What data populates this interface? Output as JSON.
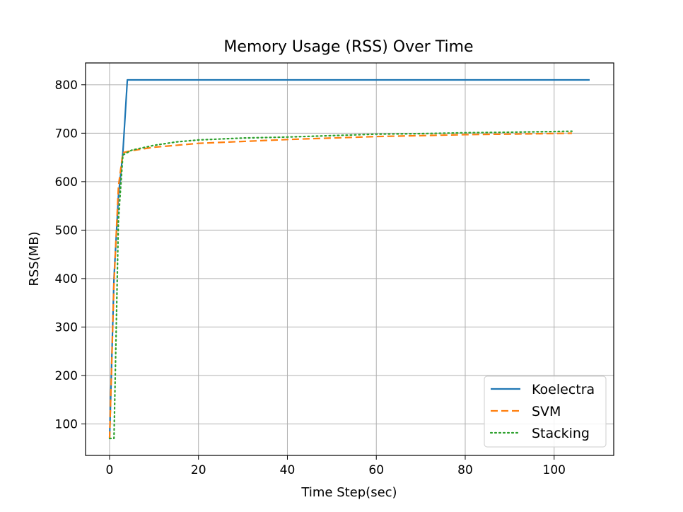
{
  "chart_data": {
    "type": "line",
    "title": "Memory Usage (RSS) Over Time",
    "xlabel": "Time Step(sec)",
    "ylabel": "RSS(MB)",
    "xlim": [
      -5.4,
      113.4
    ],
    "ylim": [
      35,
      845
    ],
    "xticks": [
      0,
      20,
      40,
      60,
      80,
      100
    ],
    "yticks": [
      100,
      200,
      300,
      400,
      500,
      600,
      700,
      800
    ],
    "grid": true,
    "legend_position": "lower-right",
    "series": [
      {
        "name": "Koelectra",
        "color": "#1f77b4",
        "style": "solid",
        "x": [
          0,
          1,
          2,
          3,
          4,
          108
        ],
        "y": [
          70,
          400,
          570,
          660,
          810,
          810
        ]
      },
      {
        "name": "SVM",
        "color": "#ff7f0e",
        "style": "dashed",
        "x": [
          0,
          1,
          2,
          3,
          5,
          10,
          20,
          30,
          40,
          50,
          60,
          70,
          80,
          90,
          104
        ],
        "y": [
          70,
          390,
          590,
          660,
          664,
          671,
          679,
          683,
          687,
          690,
          693,
          695,
          697,
          698,
          700
        ]
      },
      {
        "name": "Stacking",
        "color": "#2ca02c",
        "style": "dotted",
        "x": [
          0,
          1,
          2,
          3,
          5,
          10,
          15,
          20,
          30,
          40,
          50,
          60,
          70,
          80,
          90,
          104
        ],
        "y": [
          70,
          70,
          520,
          655,
          665,
          675,
          682,
          686,
          690,
          692,
          695,
          698,
          699,
          701,
          702,
          704
        ]
      }
    ]
  }
}
